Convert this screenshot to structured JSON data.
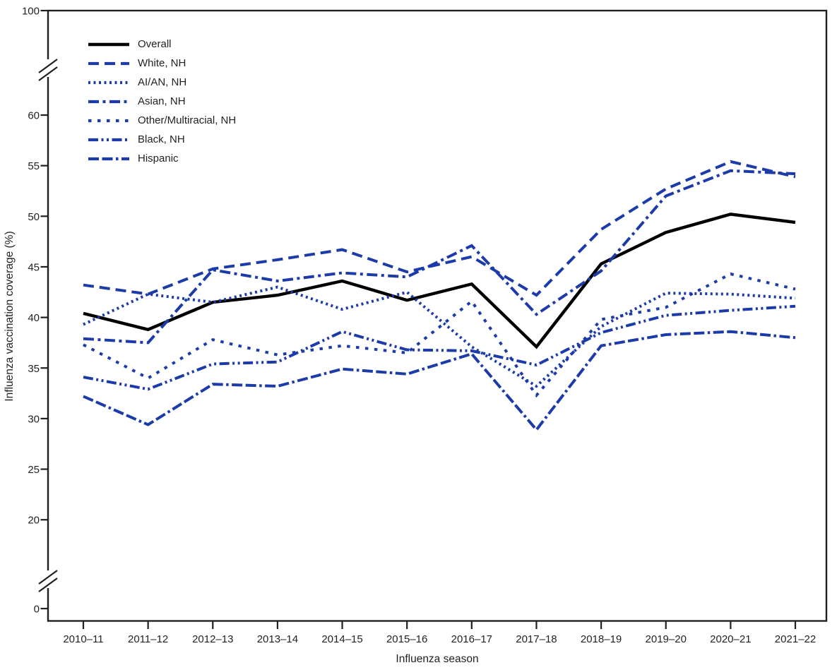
{
  "colors": {
    "series_blue": "#1c3ba8",
    "series_black": "#000000",
    "axis": "#231f20",
    "background": "#ffffff"
  },
  "chart_data": {
    "type": "line",
    "title": "",
    "xlabel": "Influenza season",
    "ylabel": "Influenza vaccination coverage (%)",
    "legend_position": "top-left",
    "grid": false,
    "y_axis_breaks": true,
    "y_ticks": [
      100,
      60,
      55,
      50,
      45,
      40,
      35,
      30,
      25,
      20,
      0
    ],
    "ylim_displayed_linear": [
      20,
      60
    ],
    "x": [
      "2010–11",
      "2011–12",
      "2012–13",
      "2013–14",
      "2014–15",
      "2015–16",
      "2016–17",
      "2017–18",
      "2018–19",
      "2019–20",
      "2020–21",
      "2021–22"
    ],
    "series": [
      {
        "name": "Overall",
        "color": "black",
        "dash": "solid",
        "values": [
          40.4,
          38.8,
          41.5,
          42.2,
          43.6,
          41.7,
          43.3,
          37.1,
          45.3,
          48.4,
          50.2,
          49.4
        ]
      },
      {
        "name": "White, NH",
        "color": "blue",
        "dash": "long-dash",
        "values": [
          43.2,
          42.3,
          44.8,
          45.7,
          46.7,
          44.5,
          46.0,
          42.2,
          48.7,
          52.7,
          55.4,
          53.9
        ]
      },
      {
        "name": "AI/AN, NH",
        "color": "blue",
        "dash": "dot",
        "values": [
          39.3,
          42.3,
          41.5,
          43.0,
          40.8,
          42.5,
          37.1,
          33.2,
          39.1,
          42.4,
          42.3,
          41.9
        ]
      },
      {
        "name": "Asian, NH",
        "color": "blue",
        "dash": "dash-dot",
        "values": [
          37.9,
          37.5,
          44.7,
          43.6,
          44.4,
          44.0,
          47.1,
          40.3,
          44.6,
          52.0,
          54.5,
          54.2
        ]
      },
      {
        "name": "Other/Multiracial, NH",
        "color": "blue",
        "dash": "short-dash",
        "values": [
          37.3,
          34.0,
          37.8,
          36.3,
          37.2,
          36.5,
          41.6,
          32.3,
          39.8,
          41.0,
          44.3,
          42.8
        ]
      },
      {
        "name": "Black, NH",
        "color": "blue",
        "dash": "dash-dot-dot",
        "values": [
          34.1,
          32.9,
          35.4,
          35.6,
          38.6,
          36.8,
          36.7,
          35.3,
          38.5,
          40.2,
          40.7,
          41.1
        ]
      },
      {
        "name": "Hispanic",
        "color": "blue",
        "dash": "dash-dash-dot",
        "values": [
          32.2,
          29.4,
          33.4,
          33.2,
          34.9,
          34.4,
          36.4,
          28.9,
          37.2,
          38.3,
          38.6,
          38.0
        ]
      }
    ]
  }
}
